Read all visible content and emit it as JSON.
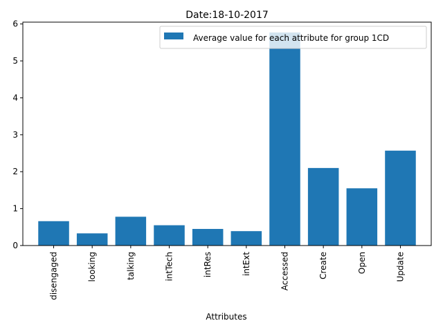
{
  "chart_data": {
    "type": "bar",
    "title": "Date:18-10-2017",
    "xlabel": "Attributes",
    "ylabel": "",
    "categories": [
      "disengaged",
      "looking",
      "talking",
      "intTech",
      "intRes",
      "intExt",
      "Accessed",
      "Create",
      "Open",
      "Update"
    ],
    "series": [
      {
        "name": "Average value for each attribute for group 1CD",
        "values": [
          0.66,
          0.33,
          0.78,
          0.55,
          0.45,
          0.39,
          5.77,
          2.1,
          1.55,
          2.57
        ],
        "color": "#1f77b4"
      }
    ],
    "ylim": [
      0,
      6.05
    ],
    "yticks": [
      "0",
      "1",
      "2",
      "3",
      "4",
      "5",
      "6"
    ],
    "legend_position": "top-right",
    "grid": false
  }
}
